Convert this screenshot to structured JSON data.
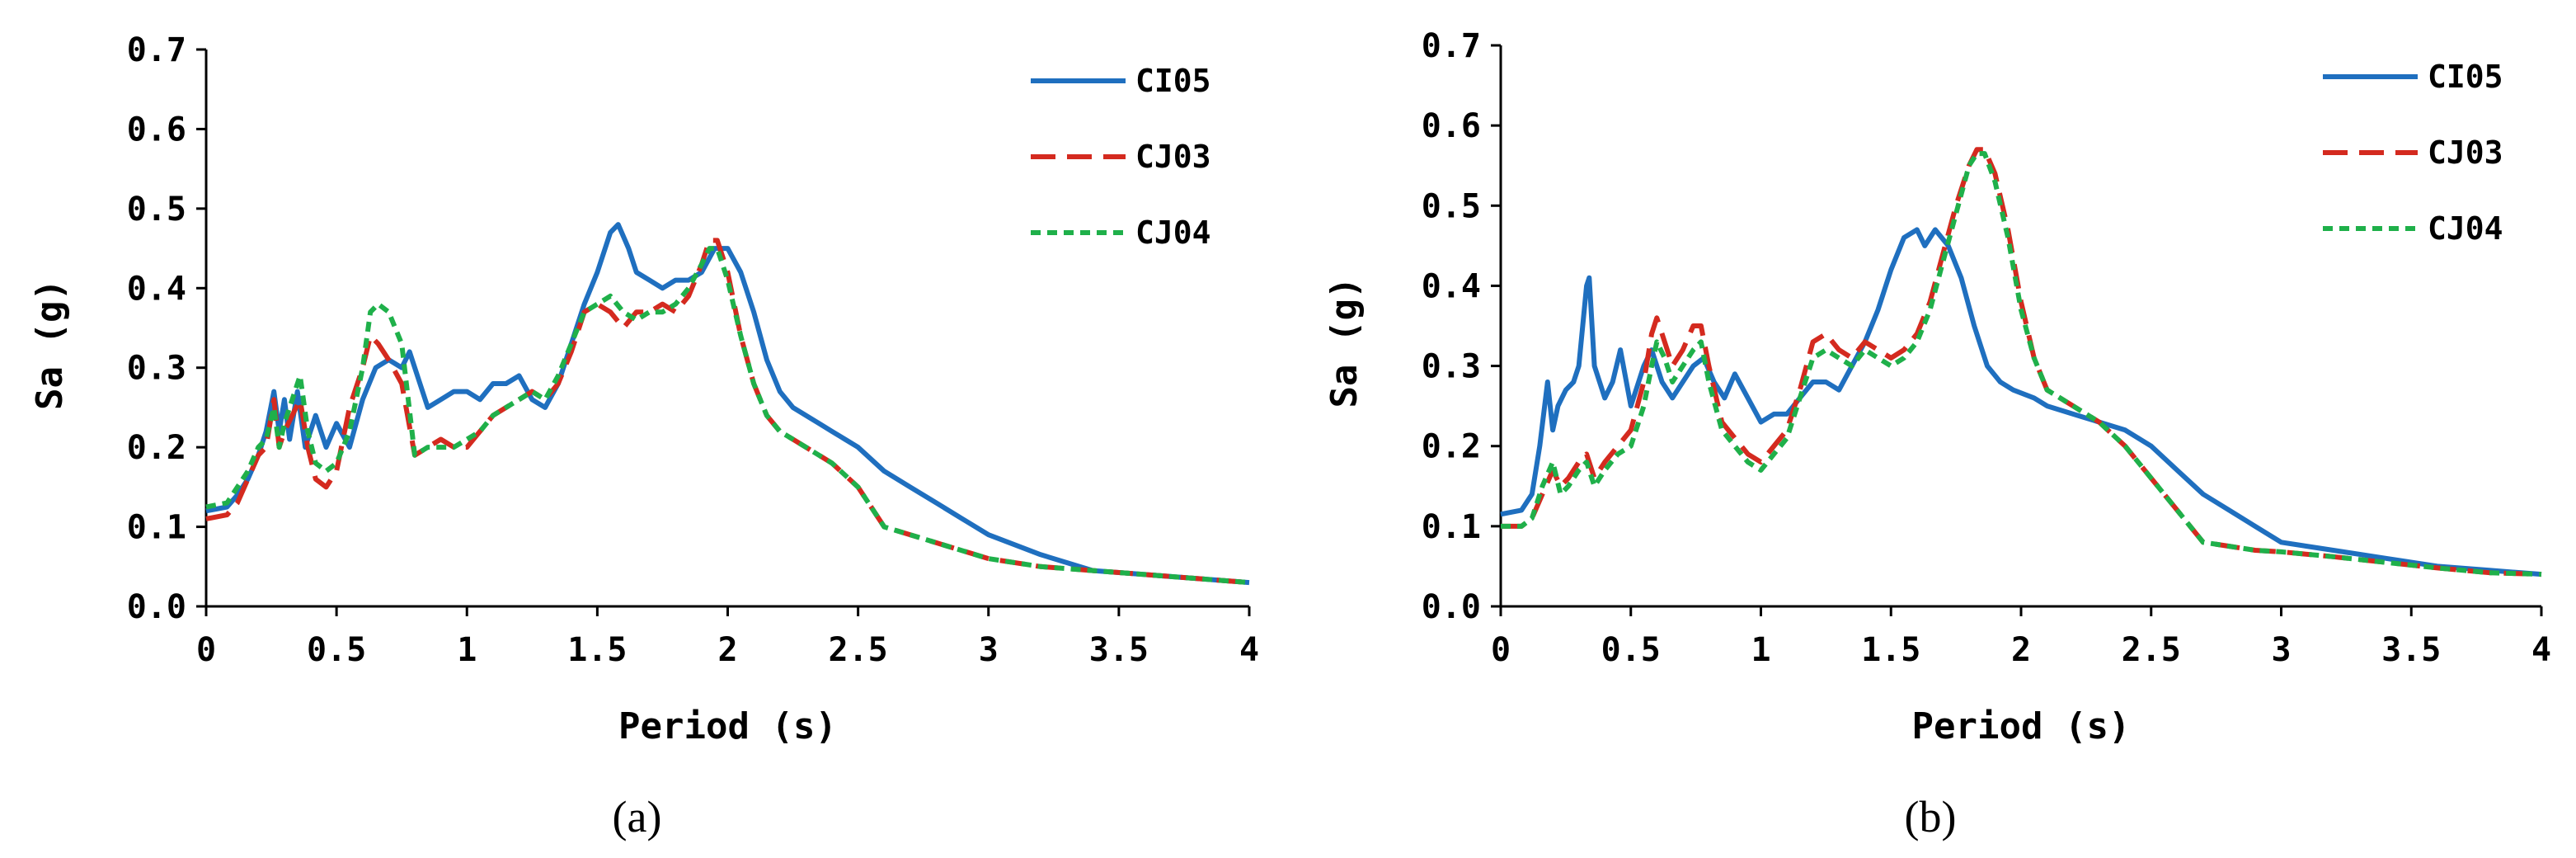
{
  "chart_data": [
    {
      "type": "line",
      "caption": "(a)",
      "xlabel": "Period (s)",
      "ylabel": "Sa (g)",
      "xlim": [
        0,
        4
      ],
      "ylim": [
        0,
        0.7
      ],
      "xticks": [
        "0",
        "0.5",
        "1",
        "1.5",
        "2",
        "2.5",
        "3",
        "3.5",
        "4"
      ],
      "yticks": [
        "0.0",
        "0.1",
        "0.2",
        "0.3",
        "0.4",
        "0.5",
        "0.6",
        "0.7"
      ],
      "grid": false,
      "legend_position": "top-right",
      "series": [
        {
          "name": "CI05",
          "color": "#1f6fbf",
          "style": "solid",
          "x": [
            0,
            0.08,
            0.12,
            0.16,
            0.2,
            0.23,
            0.26,
            0.28,
            0.3,
            0.32,
            0.35,
            0.38,
            0.42,
            0.46,
            0.5,
            0.55,
            0.6,
            0.65,
            0.7,
            0.75,
            0.78,
            0.8,
            0.85,
            0.9,
            0.95,
            1.0,
            1.05,
            1.1,
            1.15,
            1.2,
            1.25,
            1.3,
            1.35,
            1.4,
            1.45,
            1.5,
            1.55,
            1.58,
            1.62,
            1.65,
            1.7,
            1.75,
            1.8,
            1.85,
            1.9,
            1.95,
            2.0,
            2.05,
            2.1,
            2.15,
            2.2,
            2.25,
            2.3,
            2.35,
            2.4,
            2.45,
            2.5,
            2.6,
            2.7,
            2.8,
            2.9,
            3.0,
            3.2,
            3.4,
            3.6,
            3.8,
            4.0
          ],
          "y": [
            0.12,
            0.125,
            0.14,
            0.16,
            0.19,
            0.22,
            0.27,
            0.22,
            0.26,
            0.21,
            0.27,
            0.2,
            0.24,
            0.2,
            0.23,
            0.2,
            0.26,
            0.3,
            0.31,
            0.3,
            0.32,
            0.3,
            0.25,
            0.26,
            0.27,
            0.27,
            0.26,
            0.28,
            0.28,
            0.29,
            0.26,
            0.25,
            0.28,
            0.33,
            0.38,
            0.42,
            0.47,
            0.48,
            0.45,
            0.42,
            0.41,
            0.4,
            0.41,
            0.41,
            0.42,
            0.45,
            0.45,
            0.42,
            0.37,
            0.31,
            0.27,
            0.25,
            0.24,
            0.23,
            0.22,
            0.21,
            0.2,
            0.17,
            0.15,
            0.13,
            0.11,
            0.09,
            0.065,
            0.045,
            0.04,
            0.035,
            0.03
          ]
        },
        {
          "name": "CJ03",
          "color": "#d42a1f",
          "style": "long-dash",
          "x": [
            0,
            0.08,
            0.12,
            0.16,
            0.2,
            0.23,
            0.26,
            0.28,
            0.3,
            0.33,
            0.36,
            0.39,
            0.42,
            0.46,
            0.5,
            0.55,
            0.6,
            0.63,
            0.66,
            0.7,
            0.75,
            0.8,
            0.85,
            0.9,
            0.95,
            1.0,
            1.05,
            1.1,
            1.15,
            1.2,
            1.25,
            1.3,
            1.35,
            1.4,
            1.45,
            1.5,
            1.55,
            1.6,
            1.65,
            1.7,
            1.75,
            1.8,
            1.85,
            1.9,
            1.93,
            1.96,
            2.0,
            2.05,
            2.1,
            2.15,
            2.2,
            2.3,
            2.4,
            2.5,
            2.6,
            2.7,
            2.8,
            2.9,
            3.0,
            3.2,
            3.4,
            3.6,
            3.8,
            4.0
          ],
          "y": [
            0.11,
            0.115,
            0.13,
            0.16,
            0.19,
            0.2,
            0.26,
            0.2,
            0.22,
            0.24,
            0.26,
            0.2,
            0.16,
            0.15,
            0.17,
            0.25,
            0.3,
            0.34,
            0.33,
            0.31,
            0.28,
            0.19,
            0.2,
            0.21,
            0.2,
            0.2,
            0.22,
            0.24,
            0.25,
            0.26,
            0.27,
            0.26,
            0.28,
            0.32,
            0.37,
            0.38,
            0.37,
            0.35,
            0.37,
            0.37,
            0.38,
            0.37,
            0.39,
            0.43,
            0.46,
            0.46,
            0.42,
            0.34,
            0.28,
            0.24,
            0.22,
            0.2,
            0.18,
            0.15,
            0.1,
            0.09,
            0.08,
            0.07,
            0.06,
            0.05,
            0.045,
            0.04,
            0.035,
            0.03
          ]
        },
        {
          "name": "CJ04",
          "color": "#1fb04a",
          "style": "short-dash",
          "x": [
            0,
            0.08,
            0.12,
            0.16,
            0.2,
            0.23,
            0.26,
            0.28,
            0.3,
            0.33,
            0.36,
            0.39,
            0.42,
            0.46,
            0.5,
            0.55,
            0.6,
            0.63,
            0.66,
            0.7,
            0.75,
            0.8,
            0.85,
            0.9,
            0.95,
            1.0,
            1.05,
            1.1,
            1.15,
            1.2,
            1.25,
            1.3,
            1.35,
            1.4,
            1.45,
            1.5,
            1.55,
            1.6,
            1.65,
            1.7,
            1.75,
            1.8,
            1.85,
            1.9,
            1.93,
            1.96,
            2.0,
            2.05,
            2.1,
            2.15,
            2.2,
            2.3,
            2.4,
            2.5,
            2.6,
            2.7,
            2.8,
            2.9,
            3.0,
            3.2,
            3.4,
            3.6,
            3.8,
            4.0
          ],
          "y": [
            0.125,
            0.13,
            0.15,
            0.17,
            0.2,
            0.21,
            0.25,
            0.2,
            0.23,
            0.26,
            0.29,
            0.22,
            0.18,
            0.17,
            0.18,
            0.22,
            0.3,
            0.37,
            0.38,
            0.37,
            0.33,
            0.19,
            0.2,
            0.2,
            0.2,
            0.21,
            0.22,
            0.24,
            0.25,
            0.26,
            0.27,
            0.26,
            0.29,
            0.33,
            0.37,
            0.38,
            0.39,
            0.37,
            0.36,
            0.37,
            0.37,
            0.38,
            0.4,
            0.43,
            0.45,
            0.45,
            0.41,
            0.34,
            0.28,
            0.24,
            0.22,
            0.2,
            0.18,
            0.15,
            0.1,
            0.09,
            0.08,
            0.07,
            0.06,
            0.05,
            0.045,
            0.04,
            0.035,
            0.03
          ]
        }
      ]
    },
    {
      "type": "line",
      "caption": "(b)",
      "xlabel": "Period (s)",
      "ylabel": "Sa (g)",
      "xlim": [
        0,
        4
      ],
      "ylim": [
        0,
        0.7
      ],
      "xticks": [
        "0",
        "0.5",
        "1",
        "1.5",
        "2",
        "2.5",
        "3",
        "3.5",
        "4"
      ],
      "yticks": [
        "0.0",
        "0.1",
        "0.2",
        "0.3",
        "0.4",
        "0.5",
        "0.6",
        "0.7"
      ],
      "grid": false,
      "legend_position": "top-right",
      "series": [
        {
          "name": "CI05",
          "color": "#1f6fbf",
          "style": "solid",
          "x": [
            0,
            0.08,
            0.12,
            0.15,
            0.18,
            0.2,
            0.22,
            0.25,
            0.28,
            0.3,
            0.33,
            0.34,
            0.36,
            0.4,
            0.43,
            0.46,
            0.5,
            0.55,
            0.58,
            0.62,
            0.66,
            0.7,
            0.74,
            0.78,
            0.82,
            0.86,
            0.9,
            0.95,
            1.0,
            1.05,
            1.1,
            1.15,
            1.2,
            1.25,
            1.3,
            1.35,
            1.4,
            1.45,
            1.5,
            1.55,
            1.6,
            1.63,
            1.67,
            1.72,
            1.77,
            1.82,
            1.87,
            1.92,
            1.97,
            2.05,
            2.1,
            2.2,
            2.3,
            2.4,
            2.5,
            2.6,
            2.7,
            2.8,
            2.9,
            3.0,
            3.2,
            3.4,
            3.6,
            3.8,
            4.0
          ],
          "y": [
            0.115,
            0.12,
            0.14,
            0.2,
            0.28,
            0.22,
            0.25,
            0.27,
            0.28,
            0.3,
            0.4,
            0.41,
            0.3,
            0.26,
            0.28,
            0.32,
            0.25,
            0.3,
            0.32,
            0.28,
            0.26,
            0.28,
            0.3,
            0.31,
            0.28,
            0.26,
            0.29,
            0.26,
            0.23,
            0.24,
            0.24,
            0.26,
            0.28,
            0.28,
            0.27,
            0.3,
            0.33,
            0.37,
            0.42,
            0.46,
            0.47,
            0.45,
            0.47,
            0.45,
            0.41,
            0.35,
            0.3,
            0.28,
            0.27,
            0.26,
            0.25,
            0.24,
            0.23,
            0.22,
            0.2,
            0.17,
            0.14,
            0.12,
            0.1,
            0.08,
            0.07,
            0.06,
            0.05,
            0.045,
            0.04
          ]
        },
        {
          "name": "CJ03",
          "color": "#d42a1f",
          "style": "long-dash",
          "x": [
            0,
            0.08,
            0.12,
            0.16,
            0.2,
            0.23,
            0.26,
            0.3,
            0.33,
            0.36,
            0.4,
            0.45,
            0.5,
            0.55,
            0.58,
            0.6,
            0.63,
            0.66,
            0.7,
            0.74,
            0.77,
            0.8,
            0.85,
            0.9,
            0.95,
            1.0,
            1.05,
            1.1,
            1.15,
            1.2,
            1.25,
            1.3,
            1.35,
            1.4,
            1.45,
            1.5,
            1.55,
            1.6,
            1.65,
            1.7,
            1.75,
            1.8,
            1.83,
            1.86,
            1.9,
            1.95,
            2.0,
            2.05,
            2.1,
            2.2,
            2.3,
            2.4,
            2.5,
            2.6,
            2.7,
            2.8,
            2.9,
            3.0,
            3.2,
            3.4,
            3.6,
            3.8,
            4.0
          ],
          "y": [
            0.1,
            0.1,
            0.11,
            0.14,
            0.17,
            0.15,
            0.16,
            0.18,
            0.19,
            0.16,
            0.18,
            0.2,
            0.22,
            0.28,
            0.34,
            0.36,
            0.33,
            0.3,
            0.32,
            0.35,
            0.35,
            0.3,
            0.23,
            0.21,
            0.19,
            0.18,
            0.2,
            0.22,
            0.27,
            0.33,
            0.34,
            0.32,
            0.31,
            0.33,
            0.32,
            0.31,
            0.32,
            0.34,
            0.38,
            0.44,
            0.5,
            0.55,
            0.57,
            0.57,
            0.54,
            0.47,
            0.38,
            0.31,
            0.27,
            0.25,
            0.23,
            0.2,
            0.16,
            0.12,
            0.08,
            0.075,
            0.07,
            0.068,
            0.062,
            0.055,
            0.048,
            0.042,
            0.04
          ]
        },
        {
          "name": "CJ04",
          "color": "#1fb04a",
          "style": "short-dash",
          "x": [
            0,
            0.08,
            0.12,
            0.16,
            0.2,
            0.23,
            0.26,
            0.3,
            0.33,
            0.36,
            0.4,
            0.45,
            0.5,
            0.55,
            0.58,
            0.6,
            0.63,
            0.66,
            0.7,
            0.74,
            0.77,
            0.8,
            0.85,
            0.9,
            0.95,
            1.0,
            1.05,
            1.1,
            1.15,
            1.2,
            1.25,
            1.3,
            1.35,
            1.4,
            1.45,
            1.5,
            1.55,
            1.6,
            1.65,
            1.7,
            1.75,
            1.8,
            1.83,
            1.86,
            1.9,
            1.95,
            2.0,
            2.05,
            2.1,
            2.2,
            2.3,
            2.4,
            2.5,
            2.6,
            2.7,
            2.8,
            2.9,
            3.0,
            3.2,
            3.4,
            3.6,
            3.8,
            4.0
          ],
          "y": [
            0.1,
            0.1,
            0.11,
            0.15,
            0.18,
            0.14,
            0.15,
            0.17,
            0.18,
            0.15,
            0.17,
            0.19,
            0.2,
            0.25,
            0.3,
            0.33,
            0.31,
            0.28,
            0.3,
            0.32,
            0.33,
            0.28,
            0.22,
            0.2,
            0.18,
            0.17,
            0.19,
            0.21,
            0.26,
            0.31,
            0.32,
            0.31,
            0.3,
            0.32,
            0.31,
            0.3,
            0.31,
            0.33,
            0.37,
            0.43,
            0.49,
            0.55,
            0.565,
            0.565,
            0.53,
            0.46,
            0.37,
            0.31,
            0.27,
            0.25,
            0.23,
            0.2,
            0.16,
            0.12,
            0.08,
            0.075,
            0.07,
            0.068,
            0.062,
            0.055,
            0.048,
            0.042,
            0.04
          ]
        }
      ]
    }
  ]
}
